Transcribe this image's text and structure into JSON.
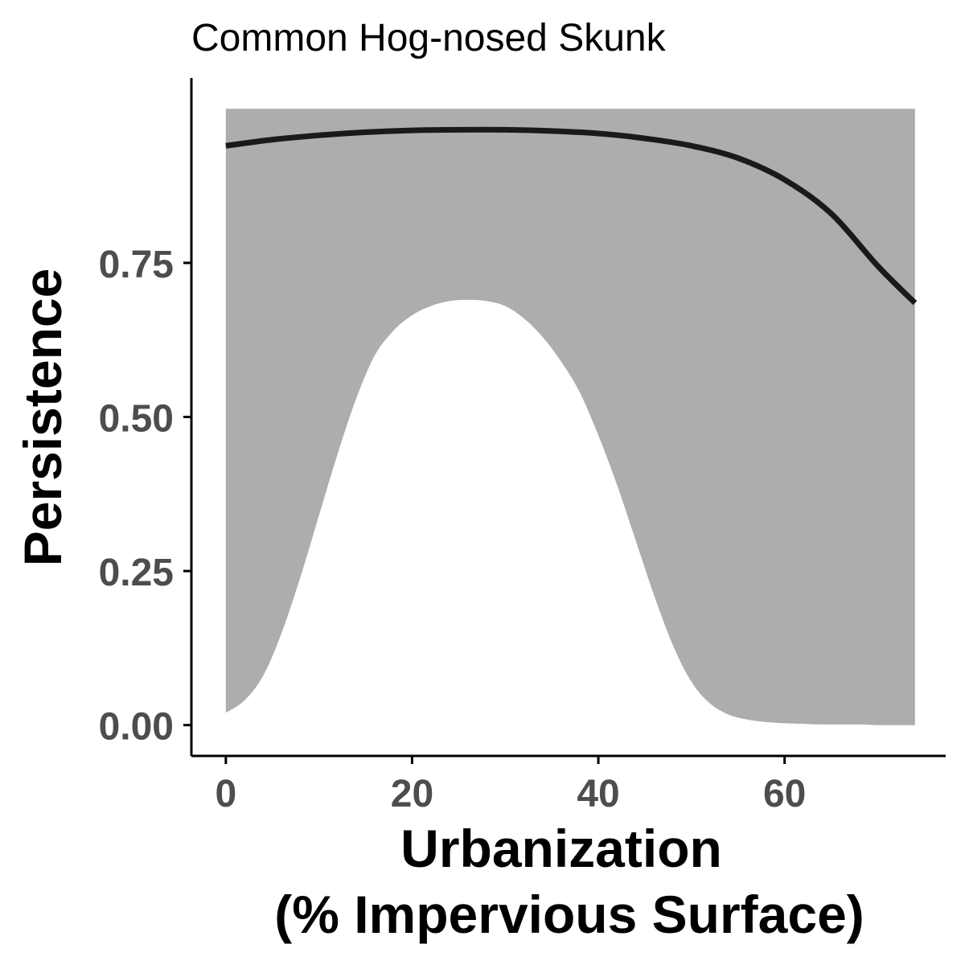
{
  "chart_data": {
    "type": "line",
    "title": "Common Hog-nosed Skunk",
    "xlabel_lines": [
      "Urbanization",
      "(% Impervious Surface)"
    ],
    "ylabel": "Persistence",
    "xlim": [
      -3.7,
      77.3
    ],
    "ylim": [
      -0.05,
      1.05
    ],
    "x_ticks": [
      0,
      20,
      40,
      60
    ],
    "x_tick_labels": [
      "0",
      "20",
      "40",
      "60"
    ],
    "y_ticks": [
      0,
      0.25,
      0.5,
      0.75
    ],
    "y_tick_labels": [
      "0.00",
      "0.25",
      "0.50",
      "0.75"
    ],
    "grid": false,
    "series": [
      {
        "x": [
          0,
          5,
          10,
          15,
          20,
          25,
          30,
          35,
          40,
          45,
          50,
          55,
          60,
          65,
          70,
          74
        ],
        "y": [
          0.94,
          0.95,
          0.957,
          0.962,
          0.965,
          0.966,
          0.966,
          0.964,
          0.96,
          0.952,
          0.94,
          0.92,
          0.885,
          0.83,
          0.745,
          0.685
        ]
      }
    ],
    "ribbon": {
      "x": [
        0,
        2,
        4,
        6,
        8,
        10,
        12,
        14,
        16,
        18,
        20,
        22,
        24,
        26,
        28,
        30,
        32,
        34,
        36,
        38,
        40,
        42,
        44,
        46,
        48,
        50,
        52,
        54,
        56,
        58,
        60,
        62,
        64,
        66,
        68,
        70,
        72,
        74
      ],
      "lower": [
        0.02,
        0.04,
        0.08,
        0.15,
        0.24,
        0.34,
        0.44,
        0.53,
        0.6,
        0.64,
        0.665,
        0.68,
        0.688,
        0.69,
        0.688,
        0.68,
        0.66,
        0.63,
        0.59,
        0.54,
        0.47,
        0.39,
        0.3,
        0.21,
        0.13,
        0.07,
        0.035,
        0.017,
        0.009,
        0.005,
        0.003,
        0.002,
        0.001,
        0.001,
        0.001,
        0.0,
        0.0,
        0.0
      ],
      "upper_value": 1.0
    },
    "colors": {
      "line": "#1a1a1a",
      "ribbon": "#adadad",
      "axis": "#000000",
      "tick_label": "#4d4d4d"
    }
  }
}
